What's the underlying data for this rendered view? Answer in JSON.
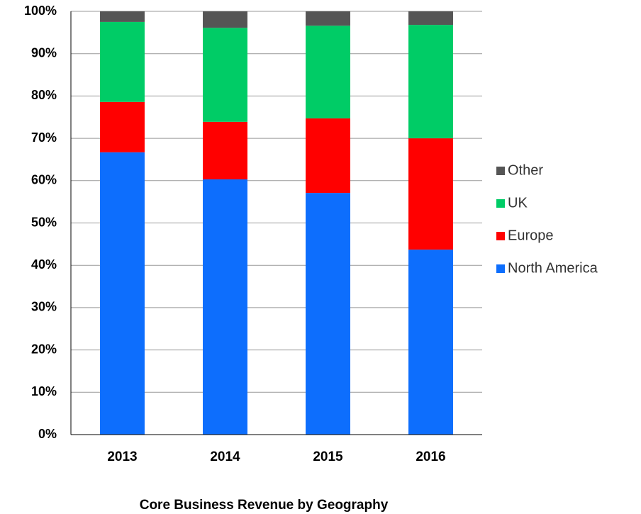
{
  "chart_data": {
    "type": "stacked_bar",
    "title": "Core Business Revenue by Geography",
    "categories": [
      "2013",
      "2014",
      "2015",
      "2016"
    ],
    "series": [
      {
        "name": "North America",
        "color": "#0d6efd",
        "values": [
          66.7,
          60.3,
          57.1,
          43.7
        ]
      },
      {
        "name": "Europe",
        "color": "#ff0000",
        "values": [
          11.9,
          13.6,
          17.6,
          26.3
        ]
      },
      {
        "name": "UK",
        "color": "#00cc66",
        "values": [
          18.9,
          22.2,
          21.9,
          26.8
        ]
      },
      {
        "name": "Other",
        "color": "#555555",
        "values": [
          2.5,
          3.9,
          3.4,
          3.2
        ]
      }
    ],
    "ylim": [
      0,
      100
    ],
    "yticks": [
      {
        "value": 0,
        "label": "0%"
      },
      {
        "value": 10,
        "label": "10%"
      },
      {
        "value": 20,
        "label": "20%"
      },
      {
        "value": 30,
        "label": "30%"
      },
      {
        "value": 40,
        "label": "40%"
      },
      {
        "value": 50,
        "label": "50%"
      },
      {
        "value": 60,
        "label": "60%"
      },
      {
        "value": 70,
        "label": "70%"
      },
      {
        "value": 80,
        "label": "80%"
      },
      {
        "value": 90,
        "label": "90%"
      },
      {
        "value": 100,
        "label": "100%"
      }
    ],
    "grid": true,
    "legend": "right"
  }
}
